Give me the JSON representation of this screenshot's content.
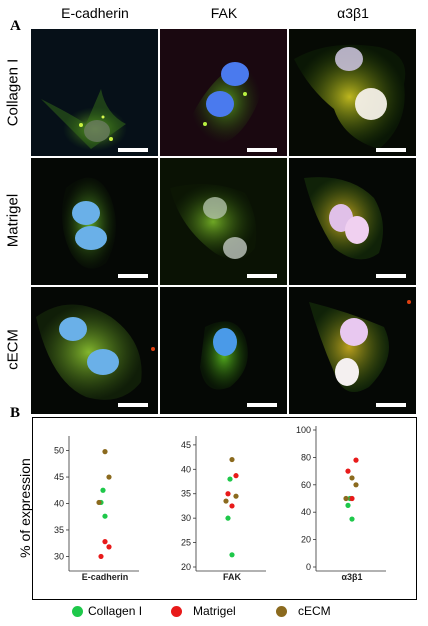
{
  "panel_a": {
    "letter": "A",
    "columns": [
      "E-cadherin",
      "FAK",
      "α3β1"
    ],
    "rows": [
      "Collagen I",
      "Matrigel",
      "cECM"
    ]
  },
  "panel_b": {
    "letter": "B",
    "ylabel": "% of expression"
  },
  "colors": {
    "Collagen I": "#1ec84a",
    "Matrigel": "#e81a1a",
    "cECM": "#8b6a1e"
  },
  "legend": [
    {
      "name": "Collagen I",
      "color": "#1ec84a"
    },
    {
      "name": "Matrigel",
      "color": "#e81a1a"
    },
    {
      "name": "cECM",
      "color": "#8b6a1e"
    }
  ],
  "chart_data": [
    {
      "type": "scatter",
      "xlabel": "E-cadherin",
      "ylim": [
        28,
        52
      ],
      "yticks": [
        30,
        35,
        40,
        45,
        50
      ],
      "series": [
        {
          "name": "Collagen I",
          "values": [
            42.5,
            40.2,
            37.6
          ]
        },
        {
          "name": "Matrigel",
          "values": [
            31.8,
            30.0,
            32.8
          ]
        },
        {
          "name": "cECM",
          "values": [
            49.8,
            45.0,
            40.2
          ]
        }
      ]
    },
    {
      "type": "scatter",
      "xlabel": "FAK",
      "ylim": [
        20,
        46
      ],
      "yticks": [
        20,
        25,
        30,
        35,
        40,
        45
      ],
      "series": [
        {
          "name": "Collagen I",
          "values": [
            38.0,
            30.0,
            22.5
          ]
        },
        {
          "name": "Matrigel",
          "values": [
            38.7,
            35.0,
            32.5
          ]
        },
        {
          "name": "cECM",
          "values": [
            42.0,
            34.5,
            33.5
          ]
        }
      ]
    },
    {
      "type": "scatter",
      "xlabel": "α3β1",
      "ylim": [
        0,
        100
      ],
      "yticks": [
        0,
        20,
        40,
        60,
        80,
        100
      ],
      "series": [
        {
          "name": "Collagen I",
          "values": [
            50,
            45,
            35
          ]
        },
        {
          "name": "Matrigel",
          "values": [
            78,
            70,
            50
          ]
        },
        {
          "name": "cECM",
          "values": [
            65,
            60,
            50
          ]
        }
      ]
    }
  ]
}
